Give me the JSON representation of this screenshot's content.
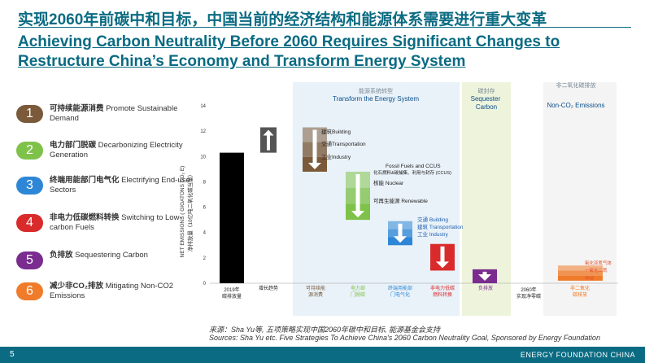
{
  "header": {
    "title_cn": "实现2060年前碳中和目标，中国当前的经济结构和能源体系需要进行重大变革",
    "title_en_line1": "Achieving Carbon Neutrality Before 2060 Requires Significant Changes to",
    "title_en_line2": "Restructure China’s Economy and Transform Energy System"
  },
  "steps": [
    {
      "num": "1",
      "cn": "可持续能源消费",
      "en": "Promote Sustainable Demand",
      "color": "#7a5a3a"
    },
    {
      "num": "2",
      "cn": "电力部门脱碳",
      "en": "Decarbonizing Electricity Generation",
      "color": "#7fc24a"
    },
    {
      "num": "3",
      "cn": "终端用能部门电气化",
      "en": "Electrifying End-use Sectors",
      "color": "#2e86d6"
    },
    {
      "num": "4",
      "cn": "非电力低碳燃料转换",
      "en": "Switching to Low-carbon Fuels",
      "color": "#d92b2b"
    },
    {
      "num": "5",
      "cn": "负排放",
      "en": "Sequestering Carbon",
      "color": "#7a2c8f"
    },
    {
      "num": "6",
      "cn": "减少非CO₂排放",
      "en": "Mitigating Non-CO2 Emissions",
      "color": "#f07b2a"
    }
  ],
  "chart_data": {
    "type": "bar",
    "subtype": "waterfall",
    "ylabel": "NET EMISSIONS ( GIGATONS CO₂ E)",
    "ylabel_cn": "净排放量（10亿吨二氧化碳当量）",
    "ylim": [
      0,
      14
    ],
    "yticks": [
      "0",
      "2",
      "4",
      "6",
      "8",
      "10",
      "12",
      "14"
    ],
    "bars": [
      {
        "label": "2019年碳排放量",
        "start": 0,
        "end": 10.3,
        "color": "#000000"
      },
      {
        "label": "增长趋势",
        "start": 10.3,
        "end": 12.3,
        "color": "#555555",
        "direction": "up"
      },
      {
        "label": "可持续能源消费",
        "start": 12.3,
        "end": 8.8,
        "color": "#7a5a3a",
        "direction": "down"
      },
      {
        "label": "电力部门脱碳",
        "start": 8.8,
        "end": 5.0,
        "color": "#7fc24a",
        "direction": "down"
      },
      {
        "label": "终端用能部门电气化",
        "start": 4.9,
        "end": 3.0,
        "color": "#2e86d6",
        "direction": "down"
      },
      {
        "label": "非电力低碳燃料转换",
        "start": 3.1,
        "end": 1.0,
        "color": "#d92b2b",
        "direction": "down"
      },
      {
        "label": "负排放",
        "start": 1.1,
        "end": 0.0,
        "color": "#7a2c8f",
        "direction": "down"
      },
      {
        "label": "2060年实现净零碳",
        "start": 0,
        "end": 0,
        "color": "#000000"
      },
      {
        "label": "非二氧化碳排放",
        "start": 0.2,
        "end": 1.4,
        "color": "#f07b2a"
      }
    ],
    "sections": [
      {
        "cn": "能源系统转型",
        "en": "Transform the Energy System"
      },
      {
        "cn": "碳封存",
        "en": "Sequester Carbon"
      },
      {
        "cn": "非二氧化碳排放",
        "en": "Non-CO₂ Emissions"
      }
    ],
    "annotations": [
      {
        "cn": "建筑",
        "en": "Building"
      },
      {
        "cn": "交通",
        "en": "Transportation"
      },
      {
        "cn": "工业",
        "en": "Industry"
      },
      {
        "cn": "",
        "en": "Fossil Fuels and CCUS"
      },
      {
        "cn": "化石燃料&碳捕集、利用与封存 (CCUS)",
        "en": ""
      },
      {
        "cn": "核能",
        "en": "Nuclear"
      },
      {
        "cn": "可再生能源",
        "en": "Renewable"
      },
      {
        "cn": "交通",
        "en": "Building"
      },
      {
        "cn": "建筑",
        "en": "Transportation"
      },
      {
        "cn": "工业",
        "en": "Industry"
      },
      {
        "cn": "氧化亚氮气体",
        "en": ""
      },
      {
        "cn": "一氧化二氮",
        "en": ""
      },
      {
        "cn": "甲烷",
        "en": ""
      }
    ]
  },
  "sources": {
    "cn": "来源：Sha Yu等, 五项策略实现中国2060年碳中和目标, 能源基金会支持",
    "en": "Sources: Sha Yu etc. Five Strategies To Achieve China’s 2060 Carbon Neutrality Goal, Sponsored by Energy Foundation"
  },
  "footer": {
    "page": "5",
    "brand": "ENERGY FOUNDATION CHINA"
  }
}
